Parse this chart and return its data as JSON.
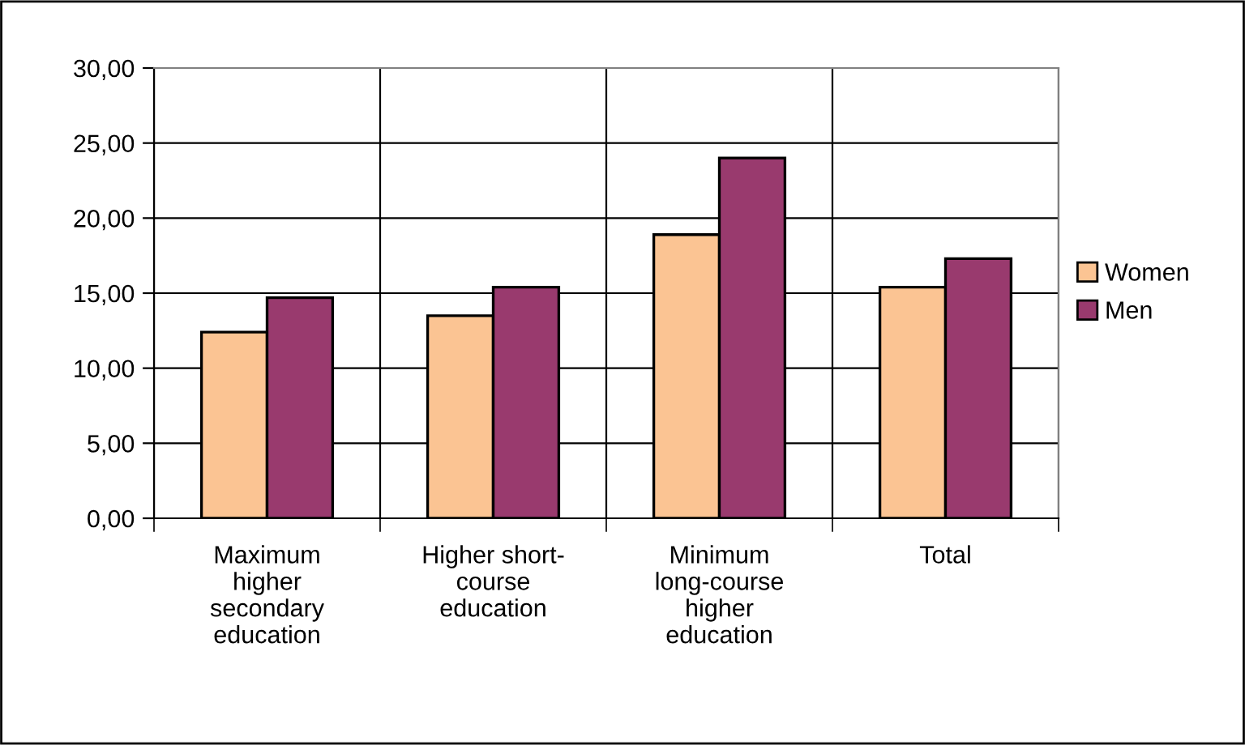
{
  "chart_data": {
    "type": "bar",
    "categories": [
      "Maximum\nhigher\nsecondary\neducation",
      "Higher short-\ncourse\neducation",
      "Minimum\nlong-course\nhigher\neducation",
      "Total"
    ],
    "series": [
      {
        "name": "Women",
        "color": "#fbc493",
        "values": [
          12.4,
          13.5,
          18.9,
          15.4
        ]
      },
      {
        "name": "Men",
        "color": "#993a6e",
        "values": [
          14.7,
          15.4,
          24.0,
          17.3
        ]
      }
    ],
    "ylim": [
      0,
      30
    ],
    "yticks": [
      {
        "value": 0,
        "label": "0,00"
      },
      {
        "value": 5,
        "label": "5,00"
      },
      {
        "value": 10,
        "label": "10,00"
      },
      {
        "value": 15,
        "label": "15,00"
      },
      {
        "value": 20,
        "label": "20,00"
      },
      {
        "value": 25,
        "label": "25,00"
      },
      {
        "value": 30,
        "label": "30,00"
      }
    ],
    "grid": true,
    "legend": "right"
  }
}
